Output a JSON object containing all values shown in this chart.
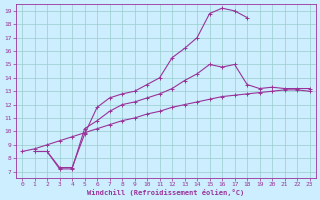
{
  "xlabel": "Windchill (Refroidissement éolien,°C)",
  "bg_color": "#cceeff",
  "line_color": "#993399",
  "grid_color": "#99cccc",
  "xlim": [
    -0.5,
    23.5
  ],
  "ylim": [
    6.5,
    19.5
  ],
  "yticks": [
    7,
    8,
    9,
    10,
    11,
    12,
    13,
    14,
    15,
    16,
    17,
    18,
    19
  ],
  "xticks": [
    0,
    1,
    2,
    3,
    4,
    5,
    6,
    7,
    8,
    9,
    10,
    11,
    12,
    13,
    14,
    15,
    16,
    17,
    18,
    19,
    20,
    21,
    22,
    23
  ],
  "line1_x": [
    0,
    1,
    2,
    3,
    4,
    5,
    6,
    7,
    8,
    9,
    10,
    11,
    12,
    13,
    14,
    15,
    16,
    17,
    18,
    19,
    20,
    21,
    22,
    23
  ],
  "line1_y": [
    8.5,
    8.7,
    9.0,
    9.3,
    9.6,
    9.9,
    10.2,
    10.5,
    10.8,
    11.0,
    11.3,
    11.5,
    11.8,
    12.0,
    12.2,
    12.4,
    12.6,
    12.7,
    12.8,
    12.9,
    13.0,
    13.1,
    13.1,
    13.0
  ],
  "line2_x": [
    1,
    2,
    3,
    4,
    5,
    6,
    7,
    8,
    9,
    10,
    11,
    12,
    13,
    14,
    15,
    16,
    17,
    18,
    19,
    20,
    21,
    22,
    23
  ],
  "line2_y": [
    8.5,
    8.5,
    7.2,
    7.2,
    10.2,
    10.8,
    11.5,
    12.0,
    12.2,
    12.5,
    12.8,
    13.2,
    13.8,
    14.3,
    15.0,
    14.8,
    15.0,
    13.5,
    13.2,
    13.3,
    13.2,
    13.2,
    13.2
  ],
  "line3_x": [
    1,
    2,
    3,
    4,
    5,
    6,
    7,
    8,
    9,
    10,
    11,
    12,
    13,
    14,
    15,
    16,
    17,
    18
  ],
  "line3_y": [
    8.5,
    8.5,
    7.3,
    7.3,
    9.8,
    11.8,
    12.5,
    12.8,
    13.0,
    13.5,
    14.0,
    15.5,
    16.2,
    17.0,
    18.8,
    19.2,
    19.0,
    18.5
  ]
}
